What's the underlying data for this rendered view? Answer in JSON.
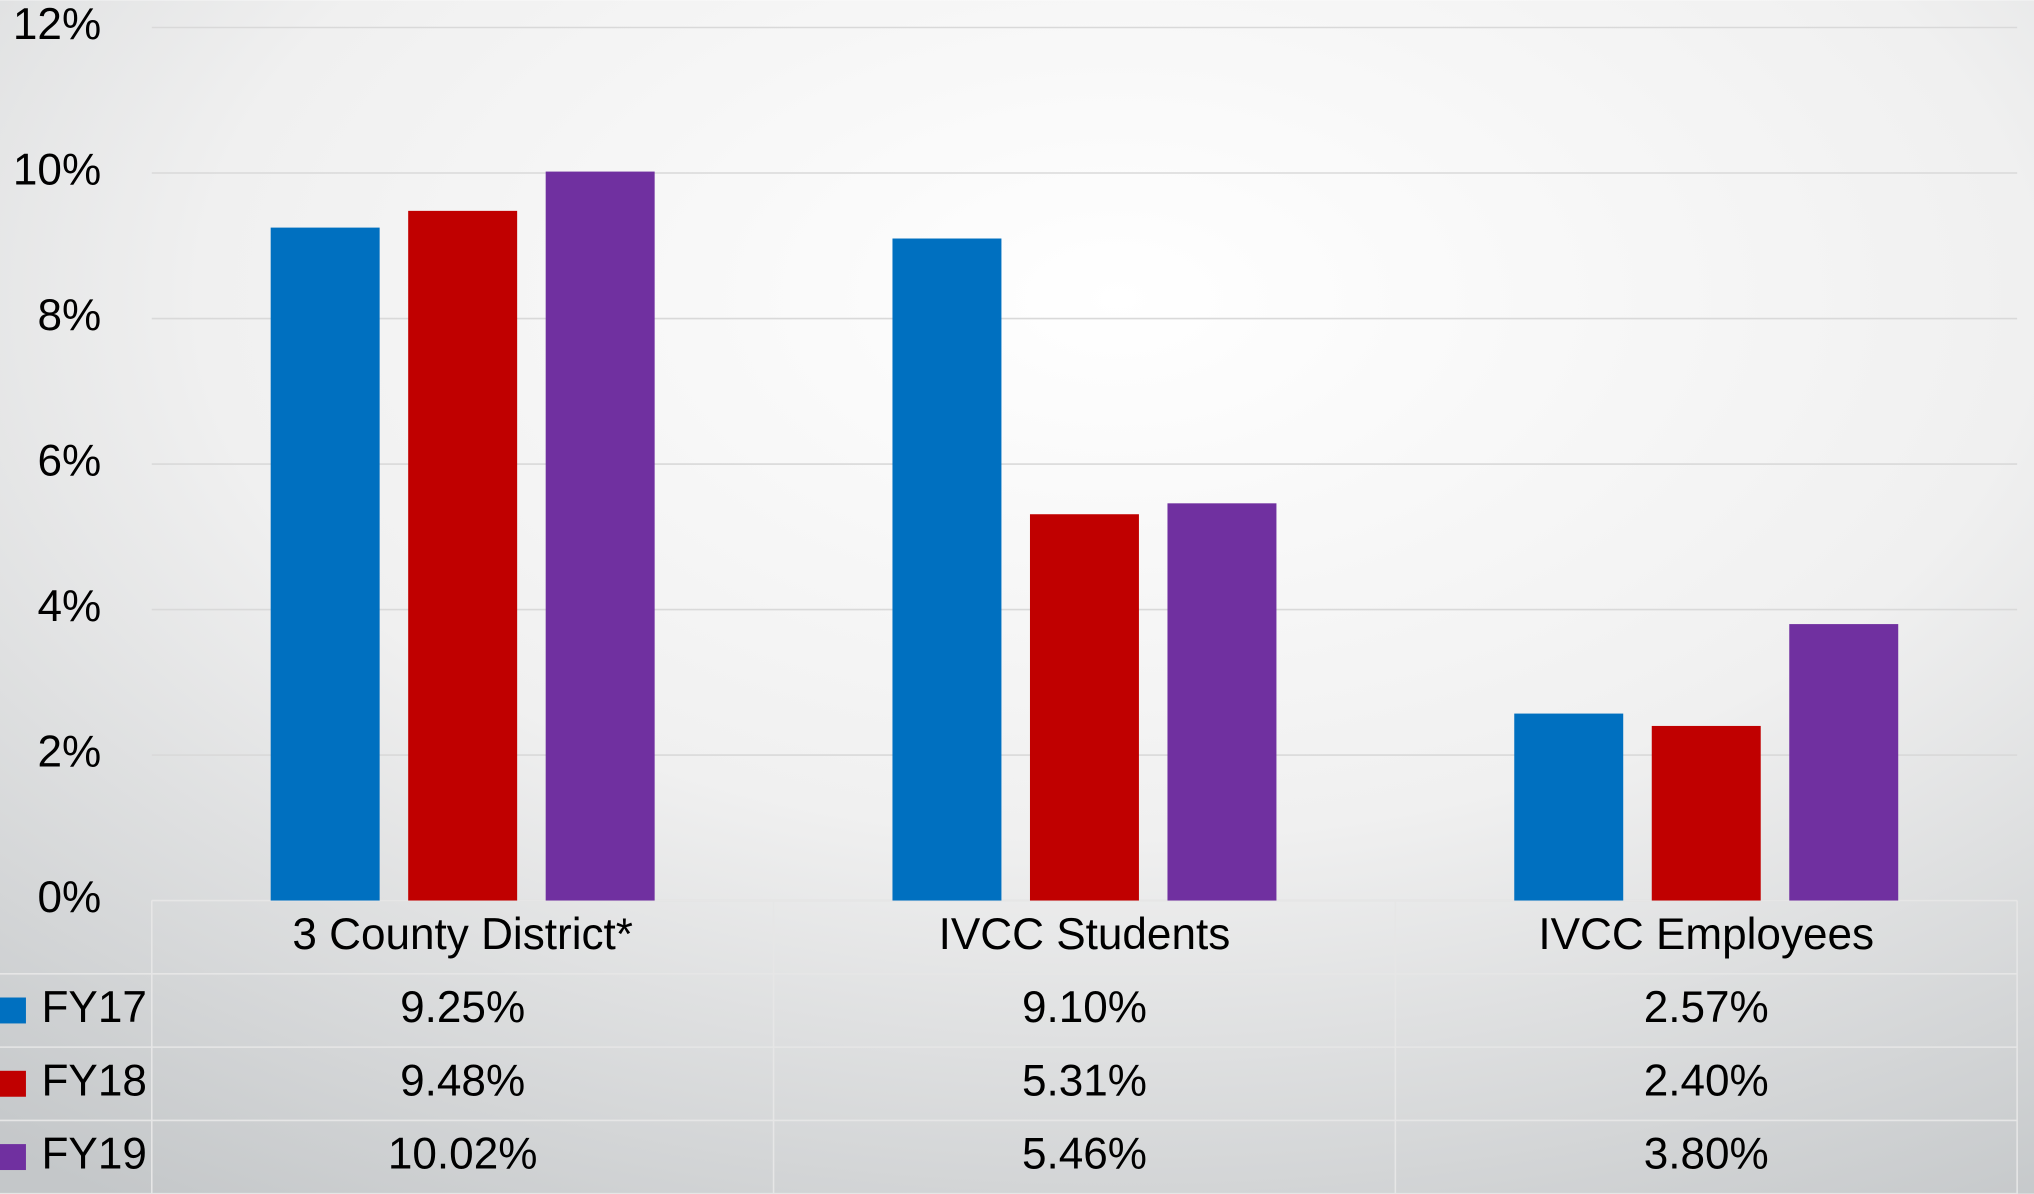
{
  "chart_data": {
    "type": "bar",
    "categories": [
      "3 County District*",
      "IVCC Students",
      "IVCC Employees"
    ],
    "series": [
      {
        "name": "FY17",
        "color": "#0070c0",
        "values": [
          9.25,
          9.1,
          2.57
        ],
        "value_labels": [
          "9.25%",
          "9.10%",
          "2.57%"
        ]
      },
      {
        "name": "FY18",
        "color": "#c00000",
        "values": [
          9.48,
          5.31,
          2.4
        ],
        "value_labels": [
          "9.48%",
          "5.31%",
          "2.40%"
        ]
      },
      {
        "name": "FY19",
        "color": "#7030a0",
        "values": [
          10.02,
          5.46,
          3.8
        ],
        "value_labels": [
          "10.02%",
          "5.46%",
          "3.80%"
        ]
      }
    ],
    "ylim": [
      0,
      12
    ],
    "yticks": [
      {
        "value": 0,
        "label": "0%"
      },
      {
        "value": 2,
        "label": "2%"
      },
      {
        "value": 4,
        "label": "4%"
      },
      {
        "value": 6,
        "label": "6%"
      },
      {
        "value": 8,
        "label": "8%"
      },
      {
        "value": 10,
        "label": "10%"
      },
      {
        "value": 12,
        "label": "12%"
      }
    ],
    "grid": true
  }
}
